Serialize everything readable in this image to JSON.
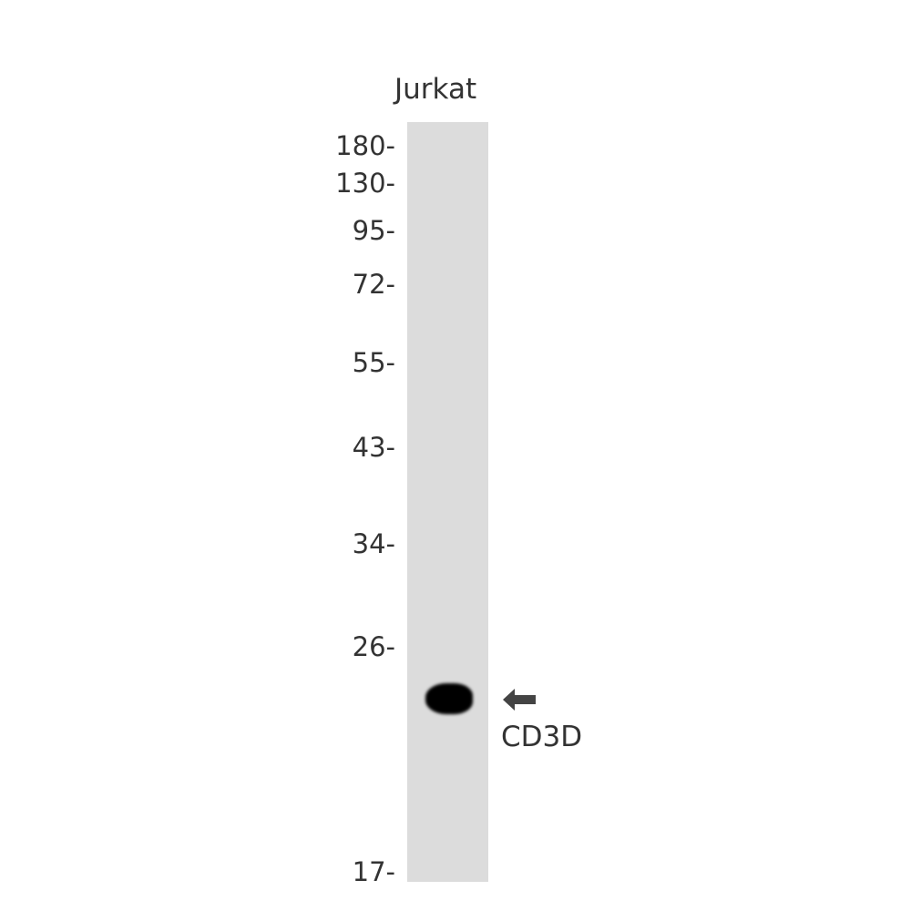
{
  "lane": {
    "label": "Jurkat",
    "background": "#dcdcdc"
  },
  "markers": [
    "180-",
    "130-",
    "95-",
    "72-",
    "55-",
    "43-",
    "34-",
    "26-",
    "17-"
  ],
  "target": {
    "label": "CD3D",
    "arrow_icon": "arrow-left-icon",
    "arrow_color": "#444444"
  },
  "band": {
    "color": "#000000"
  }
}
